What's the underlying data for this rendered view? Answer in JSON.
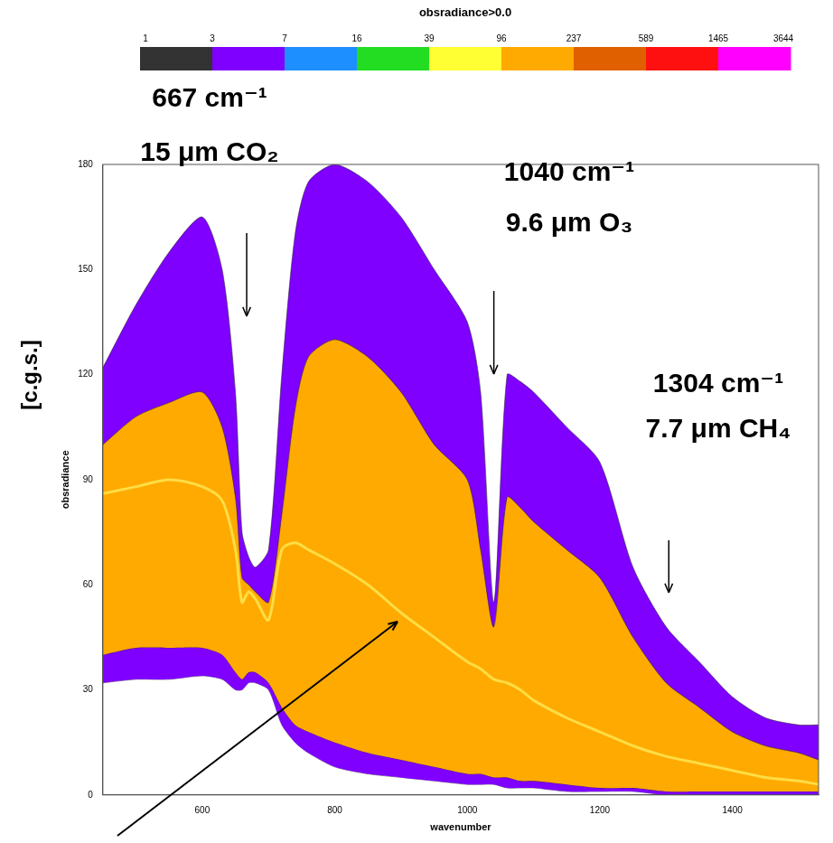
{
  "chart_data": {
    "type": "line",
    "x_label": "wavenumber",
    "y_label": "obsradiance",
    "y_unit": "[c.g.s.]",
    "x": [
      450,
      500,
      550,
      600,
      630,
      650,
      660,
      670,
      680,
      700,
      720,
      740,
      760,
      800,
      850,
      900,
      950,
      1000,
      1020,
      1040,
      1060,
      1080,
      1100,
      1150,
      1200,
      1250,
      1300,
      1350,
      1400,
      1450,
      1500,
      1530
    ],
    "bands": [
      {
        "color": "#7f00ff",
        "upper": [
          122,
          140,
          155,
          165,
          150,
          115,
          75,
          68,
          65,
          70,
          120,
          160,
          175,
          180,
          175,
          165,
          150,
          135,
          115,
          55,
          120,
          118,
          115,
          105,
          95,
          65,
          48,
          38,
          28,
          22,
          20,
          20
        ],
        "lower": [
          32,
          33,
          33,
          34,
          33,
          30,
          30,
          32,
          32,
          30,
          20,
          15,
          12,
          8,
          6,
          5,
          4,
          3,
          3,
          3,
          2,
          2,
          2,
          1,
          1,
          1,
          0,
          0,
          0,
          0,
          0,
          0
        ]
      },
      {
        "color": "#ffaa00",
        "upper": [
          100,
          108,
          112,
          115,
          105,
          85,
          62,
          60,
          58,
          55,
          80,
          110,
          125,
          130,
          125,
          115,
          100,
          90,
          70,
          48,
          85,
          82,
          78,
          70,
          62,
          45,
          32,
          25,
          18,
          14,
          12,
          10
        ],
        "lower": [
          40,
          42,
          42,
          42,
          40,
          35,
          33,
          35,
          35,
          32,
          25,
          20,
          18,
          15,
          12,
          10,
          8,
          6,
          6,
          5,
          5,
          4,
          4,
          3,
          2,
          2,
          1,
          1,
          1,
          1,
          1,
          1
        ]
      }
    ],
    "series": [
      {
        "color": "#ffdd44",
        "values": [
          86,
          88,
          90,
          88,
          84,
          70,
          55,
          58,
          56,
          50,
          70,
          72,
          70,
          66,
          60,
          52,
          45,
          38,
          36,
          33,
          32,
          30,
          27,
          22,
          18,
          14,
          11,
          9,
          7,
          5,
          4,
          3
        ]
      }
    ],
    "xlim": [
      450,
      1530
    ],
    "xticks": [
      600,
      800,
      1000,
      1200,
      1400
    ],
    "ylim": [
      0,
      180
    ],
    "yticks": [
      0,
      30,
      60,
      90,
      120,
      150,
      180
    ],
    "grid": false,
    "annotations": [
      {
        "x": 667,
        "lines": [
          "667 cm⁻¹",
          "15 μm CO₂"
        ]
      },
      {
        "x": 1040,
        "lines": [
          "1040 cm⁻¹",
          "9.6 μm O₃"
        ]
      },
      {
        "x": 1304,
        "lines": [
          "1304 cm⁻¹",
          "7.7 μm CH₄"
        ]
      }
    ],
    "colorbar": {
      "title": "obsradiance>0.0",
      "ticks": [
        1,
        3,
        7,
        16,
        39,
        96,
        237,
        589,
        1465,
        3644
      ],
      "colors": [
        "#333333",
        "#7f00ff",
        "#1e8fff",
        "#22dd22",
        "#ffff33",
        "#ffaa00",
        "#e06000",
        "#ff1010",
        "#ff00ff"
      ]
    }
  }
}
